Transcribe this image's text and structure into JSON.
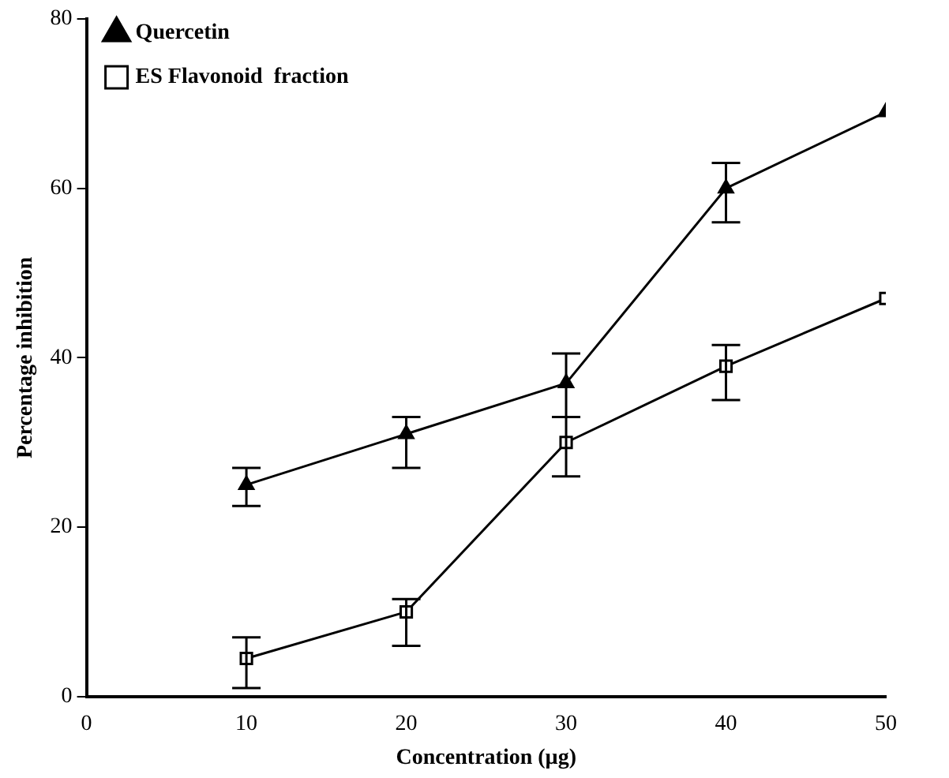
{
  "chart_data": {
    "type": "line",
    "xlabel": "Concentration (µg)",
    "ylabel": "Percentage inhibition",
    "x": [
      10,
      20,
      30,
      40,
      50
    ],
    "xlim": [
      0,
      50
    ],
    "xticks": [
      0,
      10,
      20,
      30,
      40,
      50
    ],
    "ylim": [
      0,
      80
    ],
    "yticks": [
      0,
      20,
      40,
      60,
      80
    ],
    "grid": false,
    "legend": "top left",
    "line_style": "solid",
    "series": [
      {
        "name": "Quercetin",
        "color": "#000000",
        "marker": "triangle",
        "values": [
          25,
          31,
          37,
          60,
          69
        ],
        "errors": [
          [
            22.5,
            27
          ],
          [
            27,
            33
          ],
          [
            33,
            40.5
          ],
          [
            56,
            63
          ],
          null
        ]
      },
      {
        "name": "ES Flavonoid  fraction",
        "color": "#000000",
        "marker": "square",
        "values": [
          4.5,
          10,
          30,
          39,
          47
        ],
        "errors": [
          [
            1,
            7
          ],
          [
            6,
            11.5
          ],
          [
            26,
            33
          ],
          [
            35,
            41.5
          ],
          null
        ]
      }
    ]
  }
}
